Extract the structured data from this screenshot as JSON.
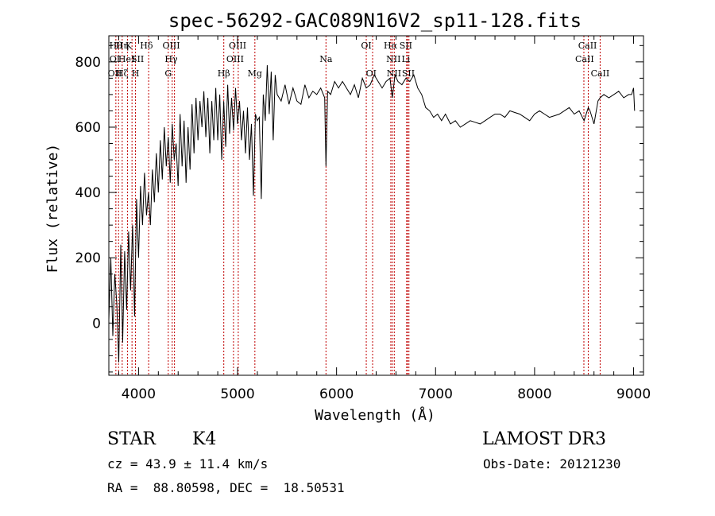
{
  "chart_data": {
    "type": "line",
    "title": "spec-56292-GAC089N16V2_sp11-128.fits",
    "xlabel": "Wavelength (Å)",
    "ylabel": "Flux (relative)",
    "xlim": [
      3700,
      9100
    ],
    "ylim": [
      -160,
      880
    ],
    "xticks": [
      4000,
      5000,
      6000,
      7000,
      8000,
      9000
    ],
    "xtick_labels": [
      "4000",
      "5000",
      "6000",
      "7000",
      "8000",
      "9000"
    ],
    "yticks": [
      0,
      200,
      400,
      600,
      800
    ],
    "ytick_labels": [
      "0",
      "200",
      "400",
      "600",
      "800"
    ],
    "series": [
      {
        "name": "spectrum",
        "x": [
          3700,
          3720,
          3740,
          3760,
          3780,
          3800,
          3820,
          3840,
          3860,
          3880,
          3900,
          3920,
          3940,
          3960,
          3980,
          4000,
          4020,
          4040,
          4060,
          4080,
          4100,
          4120,
          4140,
          4160,
          4180,
          4200,
          4220,
          4240,
          4260,
          4280,
          4300,
          4320,
          4340,
          4360,
          4380,
          4400,
          4420,
          4440,
          4460,
          4480,
          4500,
          4520,
          4540,
          4560,
          4580,
          4600,
          4620,
          4640,
          4660,
          4680,
          4700,
          4720,
          4740,
          4760,
          4780,
          4800,
          4820,
          4840,
          4860,
          4880,
          4900,
          4920,
          4940,
          4960,
          4980,
          5000,
          5020,
          5040,
          5060,
          5080,
          5100,
          5120,
          5140,
          5160,
          5180,
          5200,
          5220,
          5240,
          5260,
          5280,
          5300,
          5320,
          5340,
          5360,
          5380,
          5400,
          5440,
          5480,
          5520,
          5560,
          5600,
          5640,
          5680,
          5720,
          5760,
          5800,
          5840,
          5880,
          5893,
          5910,
          5940,
          5980,
          6020,
          6060,
          6100,
          6140,
          6180,
          6220,
          6260,
          6300,
          6340,
          6380,
          6420,
          6460,
          6500,
          6540,
          6563,
          6590,
          6620,
          6660,
          6700,
          6740,
          6780,
          6820,
          6860,
          6900,
          6940,
          6980,
          7020,
          7060,
          7100,
          7150,
          7200,
          7250,
          7300,
          7350,
          7400,
          7450,
          7500,
          7550,
          7600,
          7650,
          7700,
          7750,
          7800,
          7850,
          7900,
          7950,
          8000,
          8050,
          8100,
          8150,
          8200,
          8250,
          8300,
          8350,
          8400,
          8450,
          8500,
          8542,
          8560,
          8600,
          8640,
          8662,
          8700,
          8750,
          8800,
          8850,
          8900,
          8950,
          8980,
          9000,
          9010
        ],
        "y": [
          10,
          200,
          -40,
          150,
          60,
          -120,
          240,
          -60,
          220,
          40,
          280,
          100,
          300,
          20,
          380,
          200,
          420,
          300,
          460,
          330,
          400,
          300,
          470,
          370,
          520,
          400,
          560,
          440,
          600,
          480,
          570,
          430,
          610,
          500,
          550,
          420,
          640,
          480,
          620,
          430,
          600,
          470,
          670,
          520,
          690,
          560,
          680,
          600,
          710,
          570,
          690,
          520,
          680,
          560,
          720,
          560,
          700,
          500,
          680,
          540,
          730,
          580,
          690,
          590,
          720,
          610,
          680,
          560,
          650,
          520,
          660,
          500,
          610,
          390,
          640,
          620,
          630,
          380,
          700,
          620,
          790,
          640,
          770,
          560,
          760,
          700,
          680,
          730,
          670,
          720,
          680,
          670,
          730,
          690,
          710,
          700,
          720,
          690,
          480,
          710,
          700,
          740,
          720,
          740,
          720,
          700,
          730,
          690,
          750,
          720,
          730,
          760,
          740,
          720,
          740,
          750,
          690,
          760,
          740,
          730,
          750,
          740,
          760,
          720,
          700,
          660,
          650,
          630,
          640,
          620,
          640,
          610,
          620,
          600,
          610,
          620,
          615,
          610,
          620,
          630,
          640,
          640,
          630,
          650,
          645,
          640,
          630,
          620,
          640,
          650,
          640,
          630,
          635,
          640,
          650,
          660,
          640,
          650,
          620,
          660,
          650,
          610,
          680,
          690,
          700,
          690,
          700,
          710,
          690,
          700,
          700,
          720,
          650
        ]
      }
    ],
    "line_markers": [
      {
        "wavelength": 3771,
        "label": ""
      },
      {
        "wavelength": 3798,
        "label": ""
      },
      {
        "wavelength": 3835,
        "label": ""
      },
      {
        "wavelength": 3889,
        "label": ""
      },
      {
        "wavelength": 3934,
        "label": ""
      },
      {
        "wavelength": 3969,
        "label": ""
      },
      {
        "wavelength": 4102,
        "label": ""
      },
      {
        "wavelength": 4300,
        "label": ""
      },
      {
        "wavelength": 4340,
        "label": ""
      },
      {
        "wavelength": 4363,
        "label": ""
      },
      {
        "wavelength": 4861,
        "label": ""
      },
      {
        "wavelength": 4959,
        "label": ""
      },
      {
        "wavelength": 5007,
        "label": ""
      },
      {
        "wavelength": 5175,
        "label": ""
      },
      {
        "wavelength": 5893,
        "label": ""
      },
      {
        "wavelength": 6300,
        "label": ""
      },
      {
        "wavelength": 6364,
        "label": ""
      },
      {
        "wavelength": 6548,
        "label": ""
      },
      {
        "wavelength": 6563,
        "label": ""
      },
      {
        "wavelength": 6583,
        "label": ""
      },
      {
        "wavelength": 6708,
        "label": ""
      },
      {
        "wavelength": 6716,
        "label": ""
      },
      {
        "wavelength": 6731,
        "label": ""
      },
      {
        "wavelength": 8498,
        "label": ""
      },
      {
        "wavelength": 8542,
        "label": ""
      },
      {
        "wavelength": 8662,
        "label": ""
      }
    ],
    "line_labels": [
      {
        "wavelength": 3770,
        "row": 0,
        "text": "Hθ"
      },
      {
        "wavelength": 3836,
        "row": 0,
        "text": "Hη"
      },
      {
        "wavelength": 3900,
        "row": 0,
        "text": "K"
      },
      {
        "wavelength": 4080,
        "row": 0,
        "text": "Hδ"
      },
      {
        "wavelength": 4330,
        "row": 0,
        "text": "OIII"
      },
      {
        "wavelength": 5000,
        "row": 0,
        "text": "OIII"
      },
      {
        "wavelength": 6300,
        "row": 0,
        "text": "OI"
      },
      {
        "wavelength": 6545,
        "row": 0,
        "text": "Hα"
      },
      {
        "wavelength": 6700,
        "row": 0,
        "text": "SII"
      },
      {
        "wavelength": 8535,
        "row": 0,
        "text": "CaII"
      },
      {
        "wavelength": 3760,
        "row": 1,
        "text": "OI"
      },
      {
        "wavelength": 3860,
        "row": 1,
        "text": "He"
      },
      {
        "wavelength": 3950,
        "row": 1,
        "text": "I"
      },
      {
        "wavelength": 3990,
        "row": 1,
        "text": "SII"
      },
      {
        "wavelength": 4330,
        "row": 1,
        "text": "Hγ"
      },
      {
        "wavelength": 4975,
        "row": 1,
        "text": "OIII"
      },
      {
        "wavelength": 6575,
        "row": 1,
        "text": "NII"
      },
      {
        "wavelength": 6700,
        "row": 1,
        "text": "Li"
      },
      {
        "wavelength": 5893,
        "row": 1,
        "text": "Na"
      },
      {
        "wavelength": 8505,
        "row": 1,
        "text": "CaII"
      },
      {
        "wavelength": 3760,
        "row": 2,
        "text": "OII"
      },
      {
        "wavelength": 3835,
        "row": 2,
        "text": "Hζ"
      },
      {
        "wavelength": 3969,
        "row": 2,
        "text": "H"
      },
      {
        "wavelength": 4300,
        "row": 2,
        "text": "G"
      },
      {
        "wavelength": 4861,
        "row": 2,
        "text": "Hβ"
      },
      {
        "wavelength": 5175,
        "row": 2,
        "text": "Mg"
      },
      {
        "wavelength": 6350,
        "row": 2,
        "text": "OI"
      },
      {
        "wavelength": 6580,
        "row": 2,
        "text": "NII"
      },
      {
        "wavelength": 6725,
        "row": 2,
        "text": "SII"
      },
      {
        "wavelength": 8662,
        "row": 2,
        "text": "CaII"
      }
    ]
  },
  "info": {
    "object_class": "STAR",
    "subclass": "K4",
    "survey": "LAMOST DR3",
    "redshift": "cz = 43.9 ± 11.4 km/s",
    "obs_date": "Obs-Date: 20121230",
    "coords": "RA =  88.80598, DEC =  18.50531"
  }
}
